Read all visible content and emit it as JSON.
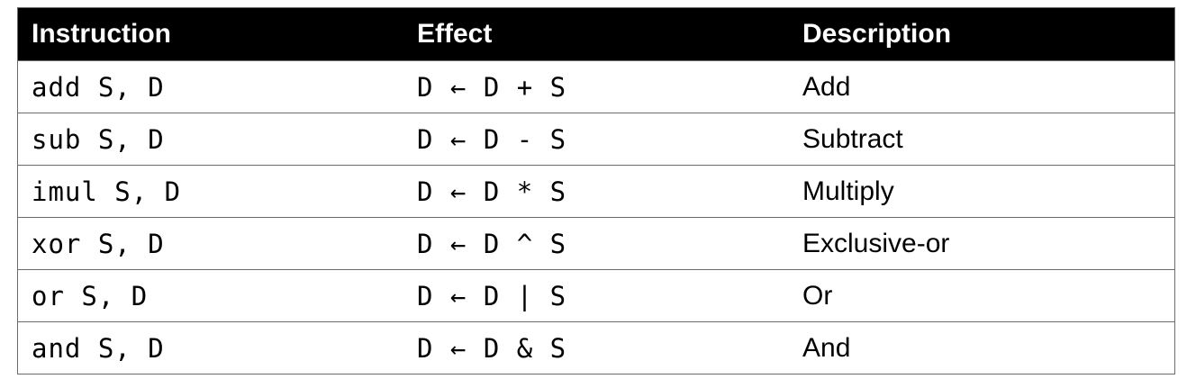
{
  "table": {
    "headers": [
      "Instruction",
      "Effect",
      "Description"
    ],
    "rows": [
      {
        "instruction": "add S, D",
        "effect": "D ← D + S",
        "description": "Add"
      },
      {
        "instruction": "sub S, D",
        "effect": "D ← D - S",
        "description": "Subtract"
      },
      {
        "instruction": "imul S, D",
        "effect": "D ← D * S",
        "description": "Multiply"
      },
      {
        "instruction": "xor S, D",
        "effect": "D ← D ^ S",
        "description": "Exclusive-or"
      },
      {
        "instruction": "or S, D",
        "effect": "D ← D | S",
        "description": "Or"
      },
      {
        "instruction": "and S, D",
        "effect": "D ← D & S",
        "description": "And"
      }
    ]
  }
}
